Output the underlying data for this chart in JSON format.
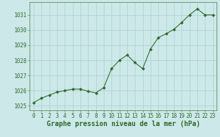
{
  "x": [
    0,
    1,
    2,
    3,
    4,
    5,
    6,
    7,
    8,
    9,
    10,
    11,
    12,
    13,
    14,
    15,
    16,
    17,
    18,
    19,
    20,
    21,
    22,
    23
  ],
  "y": [
    1025.2,
    1025.5,
    1025.7,
    1025.9,
    1026.0,
    1026.1,
    1026.1,
    1025.95,
    1025.85,
    1026.2,
    1027.45,
    1028.0,
    1028.35,
    1027.85,
    1027.45,
    1028.75,
    1029.5,
    1029.75,
    1030.05,
    1030.5,
    1031.0,
    1031.4,
    1031.0,
    1031.0
  ],
  "line_color": "#2d6a2d",
  "marker_color": "#2d6a2d",
  "bg_color": "#cce8e8",
  "grid_color": "#aacfcf",
  "xlabel": "Graphe pression niveau de la mer (hPa)",
  "xlabel_color": "#2d6a2d",
  "ylabel_ticks": [
    1025,
    1026,
    1027,
    1028,
    1029,
    1030,
    1031
  ],
  "xticks": [
    0,
    1,
    2,
    3,
    4,
    5,
    6,
    7,
    8,
    9,
    10,
    11,
    12,
    13,
    14,
    15,
    16,
    17,
    18,
    19,
    20,
    21,
    22,
    23
  ],
  "xlim": [
    -0.5,
    23.5
  ],
  "ylim": [
    1024.7,
    1031.85
  ],
  "tick_color": "#2d6a2d",
  "tick_fontsize": 5.5,
  "xlabel_fontsize": 7.0,
  "border_color": "#2d6a2d",
  "spine_color": "#5a8a5a"
}
